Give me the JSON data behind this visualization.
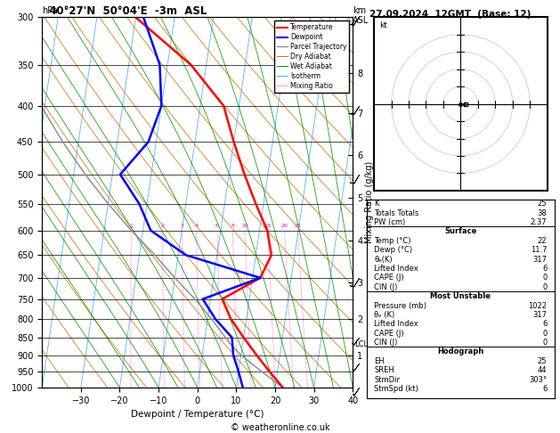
{
  "title_left": "40°27'N  50°04'E  -3m  ASL",
  "title_date": "27.09.2024  12GMT  (Base: 12)",
  "xlabel": "Dewpoint / Temperature (°C)",
  "temp_color": "#ff0000",
  "dewpoint_color": "#0000ff",
  "parcel_color": "#909090",
  "dry_adiabat_color": "#cc7700",
  "wet_adiabat_color": "#009900",
  "isotherm_color": "#44aaff",
  "mixing_ratio_color": "#ff00cc",
  "pressure_levels": [
    300,
    350,
    400,
    450,
    500,
    550,
    600,
    650,
    700,
    750,
    800,
    850,
    900,
    950,
    1000
  ],
  "temp_ticks": [
    -30,
    -20,
    -10,
    0,
    10,
    20,
    30,
    40
  ],
  "km_levels": [
    1,
    2,
    3,
    4,
    5,
    6,
    7,
    8
  ],
  "km_pressures": [
    900,
    800,
    710,
    620,
    540,
    470,
    410,
    360
  ],
  "lcl_pressure": 870,
  "skew_factor": 27,
  "temperature_profile": {
    "pressure": [
      1000,
      950,
      900,
      850,
      800,
      750,
      700,
      650,
      600,
      550,
      500,
      450,
      400,
      350,
      300
    ],
    "temp": [
      22,
      18,
      14,
      10,
      6,
      3,
      12,
      14,
      12,
      8,
      4,
      0,
      -4,
      -14,
      -30
    ]
  },
  "dewpoint_profile": {
    "pressure": [
      1000,
      950,
      900,
      850,
      800,
      750,
      700,
      650,
      600,
      550,
      500,
      450,
      400,
      350,
      300
    ],
    "dewp": [
      11.7,
      10,
      8,
      7,
      2,
      -2,
      12,
      -8,
      -18,
      -22,
      -28,
      -22,
      -20,
      -22,
      -28
    ]
  },
  "parcel_profile": {
    "pressure": [
      1000,
      950,
      900,
      870,
      800,
      750,
      700,
      650,
      600,
      550,
      500,
      450,
      400,
      350,
      300
    ],
    "temp": [
      22,
      16,
      10,
      7,
      1,
      -4,
      -10,
      -16,
      -23,
      -30,
      -37,
      -44,
      -51,
      -58,
      -65
    ]
  },
  "mixing_ratio_values": [
    1,
    2,
    3,
    4,
    6,
    8,
    10,
    15,
    20,
    25
  ],
  "wind_barbs_pressure": [
    1000,
    925,
    850,
    700,
    500,
    400,
    300
  ],
  "wind_barbs_u": [
    2,
    3,
    4,
    5,
    6,
    8,
    10
  ],
  "wind_barbs_v": [
    3,
    4,
    5,
    8,
    10,
    12,
    14
  ],
  "stats": {
    "K": 25,
    "Totals_Totals": 38,
    "PW_cm": 2.37,
    "Surf_Temp": 22,
    "Surf_Dewp": 11.7,
    "theta_e": 317,
    "LI": 6,
    "CAPE": 0,
    "CIN": 0,
    "MU_Pressure": 1022,
    "MU_theta_e": 317,
    "MU_LI": 6,
    "MU_CAPE": 0,
    "MU_CIN": 0,
    "EH": 25,
    "SREH": 44,
    "StmDir": "303°",
    "StmSpd": 6
  }
}
